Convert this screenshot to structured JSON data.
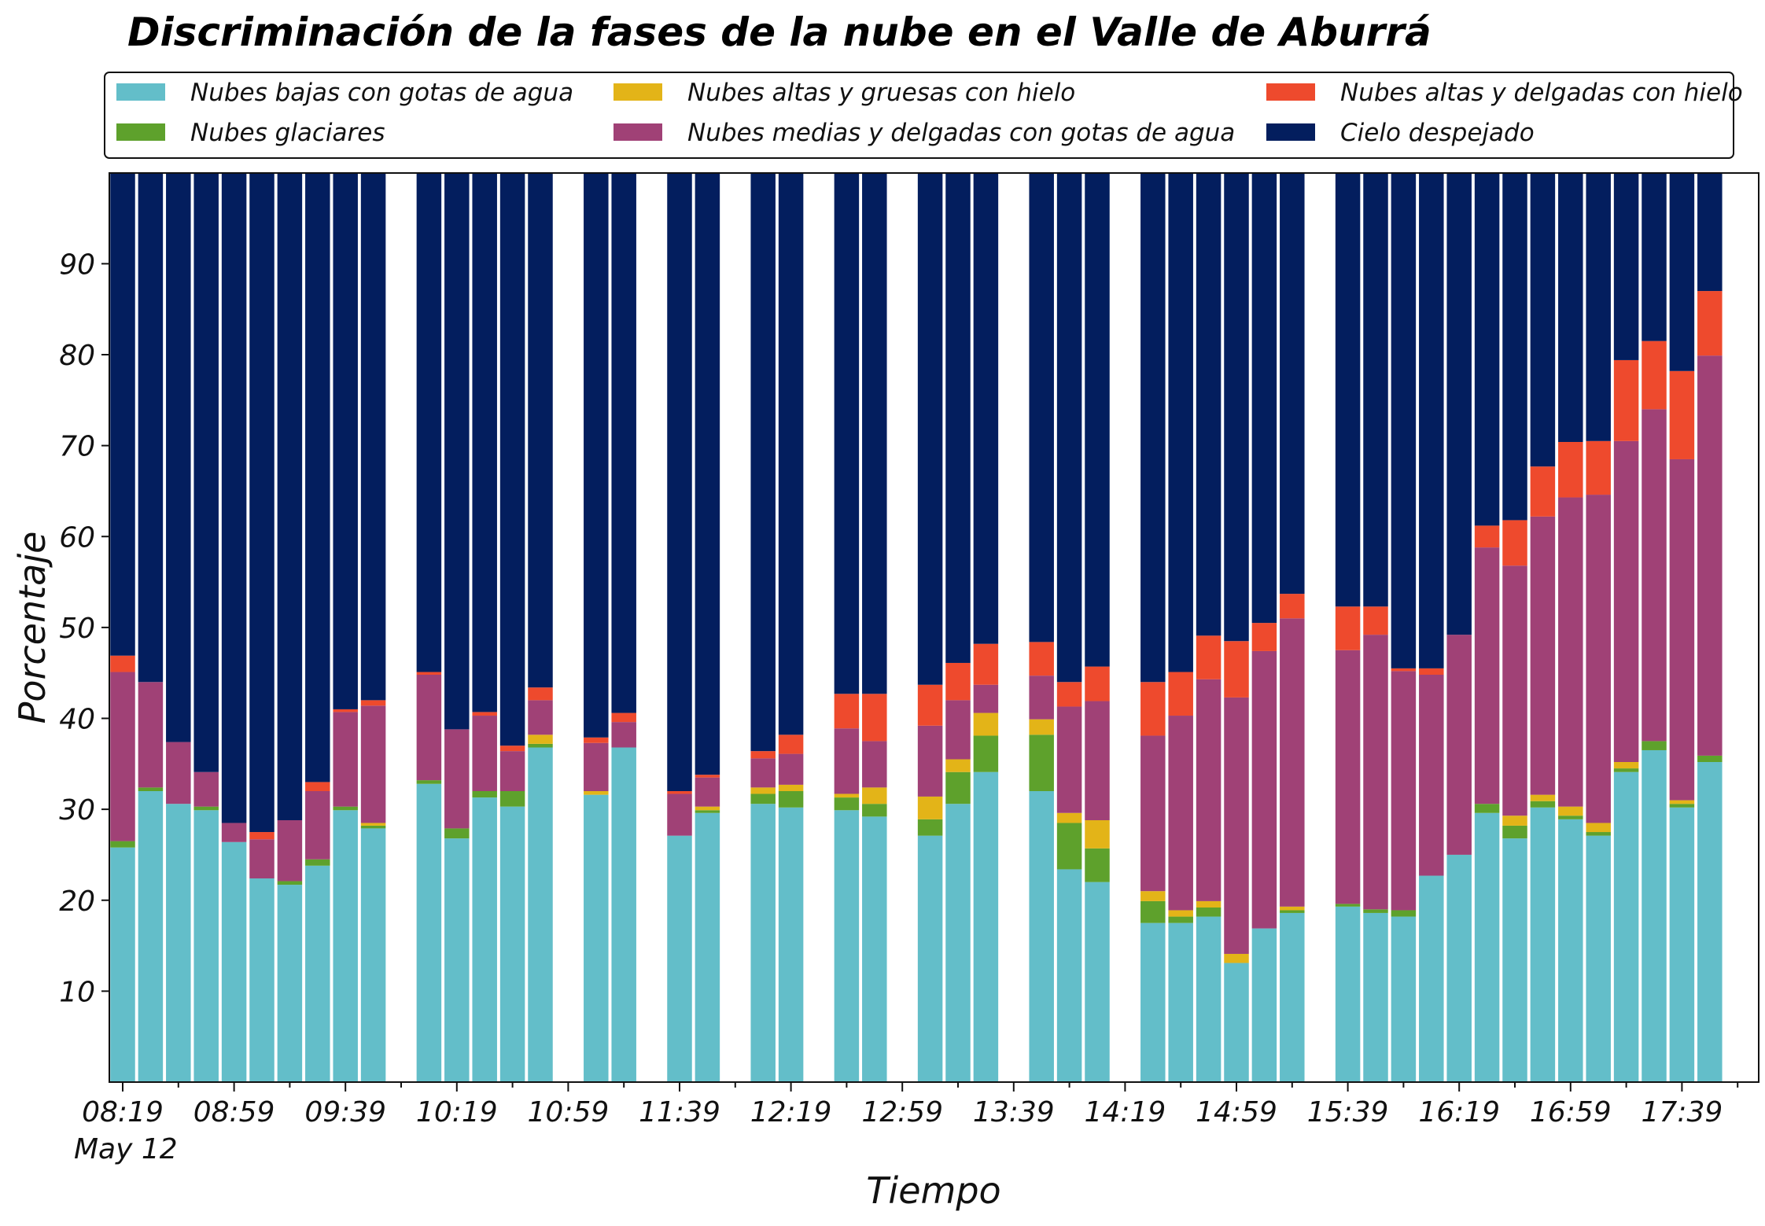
{
  "chart_data": {
    "type": "bar",
    "stacked": true,
    "title": "Discriminación de la fases de la nube en el Valle de Aburrá",
    "xlabel": "Tiempo",
    "ylabel": "Porcentaje",
    "ylim": [
      0,
      100
    ],
    "yticks": [
      10,
      20,
      30,
      40,
      50,
      60,
      70,
      80,
      90
    ],
    "grid": false,
    "legend_position": "top",
    "date_label": "May 12",
    "x_start": "08:19",
    "x_step_minutes": 10,
    "x_count": 59,
    "xtick_labels": [
      {
        "label": "08:19",
        "index": 0
      },
      {
        "label": "08:59",
        "index": 4
      },
      {
        "label": "09:39",
        "index": 8
      },
      {
        "label": "10:19",
        "index": 12
      },
      {
        "label": "10:59",
        "index": 16
      },
      {
        "label": "11:39",
        "index": 20
      },
      {
        "label": "12:19",
        "index": 24
      },
      {
        "label": "12:59",
        "index": 28
      },
      {
        "label": "13:39",
        "index": 32
      },
      {
        "label": "14:19",
        "index": 36
      },
      {
        "label": "14:59",
        "index": 40
      },
      {
        "label": "15:39",
        "index": 44
      },
      {
        "label": "16:19",
        "index": 48
      },
      {
        "label": "16:59",
        "index": 52
      },
      {
        "label": "17:39",
        "index": 56
      }
    ],
    "series": [
      {
        "key": "low",
        "name": "Nubes bajas con gotas de agua",
        "color": "#63BEC9"
      },
      {
        "key": "glacial",
        "name": "Nubes glaciares",
        "color": "#5EA12C"
      },
      {
        "key": "high_thick",
        "name": "Nubes altas y gruesas con hielo",
        "color": "#E3B418"
      },
      {
        "key": "mid_thin",
        "name": "Nubes medias y delgadas con gotas de agua",
        "color": "#A04176"
      },
      {
        "key": "high_thin",
        "name": "Nubes altas y delgadas con hielo",
        "color": "#EE4A2D"
      },
      {
        "key": "clear",
        "name": "Cielo despejado",
        "color": "#031E5E"
      }
    ],
    "bars": [
      {
        "i": 0,
        "low": 25.8,
        "glacial": 0.7,
        "high_thick": 0.0,
        "mid_thin": 18.6,
        "high_thin": 1.8
      },
      {
        "i": 1,
        "low": 32.0,
        "glacial": 0.4,
        "high_thick": 0.0,
        "mid_thin": 11.6,
        "high_thin": 0.0
      },
      {
        "i": 2,
        "low": 30.6,
        "glacial": 0.0,
        "high_thick": 0.0,
        "mid_thin": 6.8,
        "high_thin": 0.0
      },
      {
        "i": 3,
        "low": 29.9,
        "glacial": 0.4,
        "high_thick": 0.0,
        "mid_thin": 3.8,
        "high_thin": 0.0
      },
      {
        "i": 4,
        "low": 26.4,
        "glacial": 0.0,
        "high_thick": 0.0,
        "mid_thin": 2.1,
        "high_thin": 0.0
      },
      {
        "i": 5,
        "low": 22.4,
        "glacial": 0.0,
        "high_thick": 0.0,
        "mid_thin": 4.3,
        "high_thin": 0.8
      },
      {
        "i": 6,
        "low": 21.7,
        "glacial": 0.4,
        "high_thick": 0.0,
        "mid_thin": 6.7,
        "high_thin": 0.0
      },
      {
        "i": 7,
        "low": 23.8,
        "glacial": 0.7,
        "high_thick": 0.0,
        "mid_thin": 7.5,
        "high_thin": 1.0
      },
      {
        "i": 8,
        "low": 29.9,
        "glacial": 0.4,
        "high_thick": 0.0,
        "mid_thin": 10.4,
        "high_thin": 0.3
      },
      {
        "i": 9,
        "low": 27.9,
        "glacial": 0.3,
        "high_thick": 0.3,
        "mid_thin": 12.9,
        "high_thin": 0.6
      },
      {
        "i": 11,
        "low": 32.8,
        "glacial": 0.4,
        "high_thick": 0.0,
        "mid_thin": 11.6,
        "high_thin": 0.3
      },
      {
        "i": 12,
        "low": 26.8,
        "glacial": 1.1,
        "high_thick": 0.0,
        "mid_thin": 10.9,
        "high_thin": 0.0
      },
      {
        "i": 13,
        "low": 31.3,
        "glacial": 0.7,
        "high_thick": 0.0,
        "mid_thin": 8.3,
        "high_thin": 0.4
      },
      {
        "i": 14,
        "low": 30.3,
        "glacial": 1.7,
        "high_thick": 0.0,
        "mid_thin": 4.4,
        "high_thin": 0.6
      },
      {
        "i": 15,
        "low": 36.8,
        "glacial": 0.4,
        "high_thick": 1.0,
        "mid_thin": 3.8,
        "high_thin": 1.4
      },
      {
        "i": 17,
        "low": 31.6,
        "glacial": 0.0,
        "high_thick": 0.4,
        "mid_thin": 5.3,
        "high_thin": 0.6
      },
      {
        "i": 18,
        "low": 36.8,
        "glacial": 0.0,
        "high_thick": 0.0,
        "mid_thin": 2.8,
        "high_thin": 1.0
      },
      {
        "i": 20,
        "low": 27.1,
        "glacial": 0.0,
        "high_thick": 0.0,
        "mid_thin": 4.6,
        "high_thin": 0.3
      },
      {
        "i": 21,
        "low": 29.6,
        "glacial": 0.3,
        "high_thick": 0.4,
        "mid_thin": 3.2,
        "high_thin": 0.3
      },
      {
        "i": 23,
        "low": 30.6,
        "glacial": 1.1,
        "high_thick": 0.7,
        "mid_thin": 3.2,
        "high_thin": 0.8
      },
      {
        "i": 24,
        "low": 30.2,
        "glacial": 1.8,
        "high_thick": 0.7,
        "mid_thin": 3.4,
        "high_thin": 2.1
      },
      {
        "i": 26,
        "low": 29.9,
        "glacial": 1.4,
        "high_thick": 0.4,
        "mid_thin": 7.2,
        "high_thin": 3.8
      },
      {
        "i": 27,
        "low": 29.2,
        "glacial": 1.4,
        "high_thick": 1.8,
        "mid_thin": 5.1,
        "high_thin": 5.2
      },
      {
        "i": 29,
        "low": 27.1,
        "glacial": 1.8,
        "high_thick": 2.5,
        "mid_thin": 7.8,
        "high_thin": 4.5
      },
      {
        "i": 30,
        "low": 30.6,
        "glacial": 3.5,
        "high_thick": 1.4,
        "mid_thin": 6.5,
        "high_thin": 4.1
      },
      {
        "i": 31,
        "low": 34.1,
        "glacial": 4.0,
        "high_thick": 2.5,
        "mid_thin": 3.1,
        "high_thin": 4.5
      },
      {
        "i": 33,
        "low": 32.0,
        "glacial": 6.2,
        "high_thick": 1.7,
        "mid_thin": 4.8,
        "high_thin": 3.7
      },
      {
        "i": 34,
        "low": 23.4,
        "glacial": 5.1,
        "high_thick": 1.1,
        "mid_thin": 11.7,
        "high_thin": 2.7
      },
      {
        "i": 35,
        "low": 22.0,
        "glacial": 3.7,
        "high_thick": 3.1,
        "mid_thin": 13.1,
        "high_thin": 3.8
      },
      {
        "i": 37,
        "low": 17.5,
        "glacial": 2.4,
        "high_thick": 1.1,
        "mid_thin": 17.1,
        "high_thin": 5.9
      },
      {
        "i": 38,
        "low": 17.5,
        "glacial": 0.7,
        "high_thick": 0.7,
        "mid_thin": 21.4,
        "high_thin": 4.8
      },
      {
        "i": 39,
        "low": 18.2,
        "glacial": 1.0,
        "high_thick": 0.7,
        "mid_thin": 24.4,
        "high_thin": 4.8
      },
      {
        "i": 40,
        "low": 13.1,
        "glacial": 0.0,
        "high_thick": 1.0,
        "mid_thin": 28.2,
        "high_thin": 6.2
      },
      {
        "i": 41,
        "low": 16.9,
        "glacial": 0.0,
        "high_thick": 0.0,
        "mid_thin": 30.5,
        "high_thin": 3.1
      },
      {
        "i": 42,
        "low": 18.6,
        "glacial": 0.3,
        "high_thick": 0.4,
        "mid_thin": 31.7,
        "high_thin": 2.7
      },
      {
        "i": 44,
        "low": 19.3,
        "glacial": 0.3,
        "high_thick": 0.0,
        "mid_thin": 27.9,
        "high_thin": 4.8
      },
      {
        "i": 45,
        "low": 18.6,
        "glacial": 0.4,
        "high_thick": 0.0,
        "mid_thin": 30.2,
        "high_thin": 3.1
      },
      {
        "i": 46,
        "low": 18.2,
        "glacial": 0.7,
        "high_thick": 0.0,
        "mid_thin": 26.3,
        "high_thin": 0.3
      },
      {
        "i": 47,
        "low": 22.7,
        "glacial": 0.0,
        "high_thick": 0.0,
        "mid_thin": 22.1,
        "high_thin": 0.7
      },
      {
        "i": 48,
        "low": 25.0,
        "glacial": 0.0,
        "high_thick": 0.0,
        "mid_thin": 24.2,
        "high_thin": 0.0
      },
      {
        "i": 49,
        "low": 29.6,
        "glacial": 1.0,
        "high_thick": 0.0,
        "mid_thin": 28.2,
        "high_thin": 2.4
      },
      {
        "i": 50,
        "low": 26.8,
        "glacial": 1.4,
        "high_thick": 1.1,
        "mid_thin": 27.5,
        "high_thin": 5.0
      },
      {
        "i": 51,
        "low": 30.2,
        "glacial": 0.7,
        "high_thick": 0.7,
        "mid_thin": 30.6,
        "high_thin": 5.5
      },
      {
        "i": 52,
        "low": 28.9,
        "glacial": 0.4,
        "high_thick": 1.0,
        "mid_thin": 34.0,
        "high_thin": 6.1
      },
      {
        "i": 53,
        "low": 27.1,
        "glacial": 0.4,
        "high_thick": 1.0,
        "mid_thin": 36.1,
        "high_thin": 5.9
      },
      {
        "i": 54,
        "low": 34.1,
        "glacial": 0.4,
        "high_thick": 0.7,
        "mid_thin": 35.3,
        "high_thin": 8.9
      },
      {
        "i": 55,
        "low": 36.5,
        "glacial": 1.0,
        "high_thick": 0.0,
        "mid_thin": 36.5,
        "high_thin": 7.5
      },
      {
        "i": 56,
        "low": 30.2,
        "glacial": 0.4,
        "high_thick": 0.4,
        "mid_thin": 37.5,
        "high_thin": 9.7
      },
      {
        "i": 57,
        "low": 35.2,
        "glacial": 0.7,
        "high_thick": 0.0,
        "mid_thin": 44.0,
        "high_thin": 7.1
      }
    ]
  }
}
